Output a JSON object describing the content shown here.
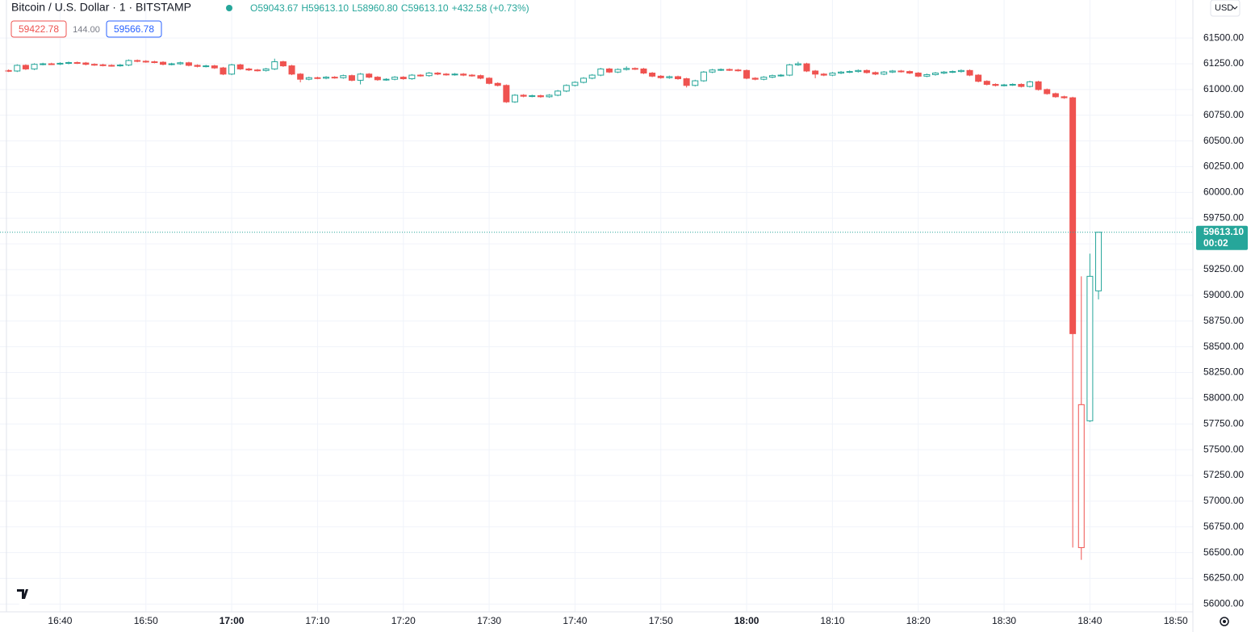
{
  "chart_data": {
    "type": "candlestick",
    "symbol": "Bitcoin / U.S. Dollar · 1 · BITSTAMP",
    "ohlc": [
      "O59043.67",
      "H59613.10",
      "L58960.80",
      "C59613.10",
      "+432.58 (+0.73%)"
    ],
    "bid": "59422.78",
    "spread": "144.00",
    "ask": "59566.78",
    "currency": "USD",
    "last_price": "59613.10",
    "countdown": "00:02",
    "up_color": "#26a69a",
    "down_color": "#ef5350",
    "grid": true,
    "x": [
      "16:34",
      "16:35",
      "16:36",
      "16:37",
      "16:38",
      "16:39",
      "16:40",
      "16:41",
      "16:42",
      "16:43",
      "16:44",
      "16:45",
      "16:46",
      "16:47",
      "16:48",
      "16:49",
      "16:50",
      "16:51",
      "16:52",
      "16:53",
      "16:54",
      "16:55",
      "16:56",
      "16:57",
      "16:58",
      "16:59",
      "17:00",
      "17:01",
      "17:02",
      "17:03",
      "17:04",
      "17:05",
      "17:06",
      "17:07",
      "17:08",
      "17:09",
      "17:10",
      "17:11",
      "17:12",
      "17:13",
      "17:14",
      "17:15",
      "17:16",
      "17:17",
      "17:18",
      "17:19",
      "17:20",
      "17:21",
      "17:22",
      "17:23",
      "17:24",
      "17:25",
      "17:26",
      "17:27",
      "17:28",
      "17:29",
      "17:30",
      "17:31",
      "17:32",
      "17:33",
      "17:34",
      "17:35",
      "17:36",
      "17:37",
      "17:38",
      "17:39",
      "17:40",
      "17:41",
      "17:42",
      "17:43",
      "17:44",
      "17:45",
      "17:46",
      "17:47",
      "17:48",
      "17:49",
      "17:50",
      "17:51",
      "17:52",
      "17:53",
      "17:54",
      "17:55",
      "17:56",
      "17:57",
      "17:58",
      "17:59",
      "18:00",
      "18:01",
      "18:02",
      "18:03",
      "18:04",
      "18:05",
      "18:06",
      "18:07",
      "18:08",
      "18:09",
      "18:10",
      "18:11",
      "18:12",
      "18:13",
      "18:14",
      "18:15",
      "18:16",
      "18:17",
      "18:18",
      "18:19",
      "18:20",
      "18:21",
      "18:22",
      "18:23",
      "18:24",
      "18:25",
      "18:26",
      "18:27",
      "18:28",
      "18:29",
      "18:30",
      "18:31",
      "18:32",
      "18:33",
      "18:34",
      "18:35",
      "18:36",
      "18:37",
      "18:38",
      "18:39",
      "18:40",
      "18:41"
    ],
    "open": [
      61185,
      61180,
      61235,
      61200,
      61245,
      61250,
      61248,
      61255,
      61262,
      61258,
      61245,
      61240,
      61235,
      61232,
      61238,
      61282,
      61275,
      61270,
      61265,
      61245,
      61250,
      61260,
      61235,
      61225,
      61230,
      61210,
      61150,
      61240,
      61200,
      61190,
      61185,
      61200,
      61270,
      61230,
      61150,
      61100,
      61115,
      61110,
      61120,
      61115,
      61135,
      61090,
      61150,
      61120,
      61095,
      61100,
      61120,
      61105,
      61140,
      61135,
      61160,
      61150,
      61145,
      61150,
      61140,
      61135,
      61110,
      61060,
      61040,
      60880,
      60945,
      60935,
      60940,
      60930,
      60945,
      60985,
      61040,
      61070,
      61110,
      61140,
      61200,
      61170,
      61195,
      61205,
      61200,
      61160,
      61130,
      61115,
      61125,
      61105,
      61040,
      61085,
      61170,
      61190,
      61195,
      61190,
      61185,
      61110,
      61100,
      61120,
      61135,
      61140,
      61240,
      61250,
      61180,
      61150,
      61140,
      61160,
      61170,
      61175,
      61185,
      61165,
      61150,
      61170,
      61180,
      61175,
      61160,
      61130,
      61145,
      61160,
      61170,
      61175,
      61185,
      61140,
      61080,
      61050,
      61040,
      61045,
      61050,
      61030,
      61075,
      61000,
      60960,
      60930,
      60920,
      56549,
      57781,
      59043.67
    ],
    "high": [
      61195,
      61245,
      61245,
      61255,
      61260,
      61260,
      61265,
      61272,
      61272,
      61268,
      61255,
      61250,
      61245,
      61248,
      61292,
      61292,
      61285,
      61280,
      61275,
      61260,
      61270,
      61270,
      61245,
      61240,
      61240,
      61220,
      61250,
      61250,
      61210,
      61200,
      61210,
      61300,
      61280,
      61240,
      61160,
      61125,
      61125,
      61130,
      61130,
      61145,
      61145,
      61160,
      61160,
      61130,
      61110,
      61130,
      61130,
      61150,
      61150,
      61170,
      61170,
      61160,
      61160,
      61160,
      61150,
      61145,
      61120,
      61070,
      61050,
      60955,
      60955,
      60950,
      60950,
      60955,
      60995,
      61050,
      61080,
      61120,
      61150,
      61210,
      61210,
      61205,
      61225,
      61215,
      61210,
      61170,
      61140,
      61135,
      61135,
      61115,
      61095,
      61180,
      61200,
      61205,
      61205,
      61200,
      61195,
      61120,
      61130,
      61145,
      61150,
      61250,
      61270,
      61260,
      61190,
      61160,
      61170,
      61180,
      61185,
      61195,
      61195,
      61175,
      61180,
      61190,
      61190,
      61185,
      61170,
      61155,
      61170,
      61180,
      61185,
      61195,
      61195,
      61150,
      61090,
      61060,
      61055,
      61060,
      61060,
      61085,
      61085,
      61010,
      60970,
      60940,
      60930,
      59185,
      59405,
      59613.1
    ],
    "low": [
      61170,
      61170,
      61190,
      61190,
      61235,
      61238,
      61238,
      61245,
      61248,
      61235,
      61230,
      61225,
      61222,
      61222,
      61228,
      61265,
      61260,
      61255,
      61235,
      61235,
      61240,
      61225,
      61215,
      61215,
      61200,
      61140,
      61140,
      61190,
      61180,
      61175,
      61175,
      61190,
      61220,
      61140,
      61070,
      61090,
      61100,
      61100,
      61105,
      61105,
      61080,
      61050,
      61110,
      61085,
      61085,
      61090,
      61095,
      61095,
      61125,
      61125,
      61140,
      61135,
      61135,
      61130,
      61125,
      61100,
      61050,
      61030,
      60870,
      60870,
      60925,
      60925,
      60920,
      60920,
      60935,
      60975,
      61030,
      61060,
      61100,
      61130,
      61160,
      61160,
      61185,
      61190,
      61150,
      61120,
      61105,
      61105,
      61095,
      61020,
      61030,
      61075,
      61160,
      61180,
      61180,
      61175,
      61100,
      61090,
      61090,
      61110,
      61125,
      61130,
      61230,
      61170,
      61110,
      61130,
      61130,
      61150,
      61160,
      61165,
      61155,
      61140,
      61140,
      61160,
      61165,
      61150,
      61120,
      61120,
      61135,
      61150,
      61160,
      61165,
      61130,
      61070,
      61040,
      61030,
      61030,
      61035,
      61020,
      61020,
      60990,
      60950,
      60920,
      60910,
      56549,
      56430,
      57770,
      58960.8
    ],
    "close": [
      61180,
      61235,
      61200,
      61245,
      61250,
      61248,
      61255,
      61262,
      61258,
      61245,
      61240,
      61235,
      61232,
      61238,
      61282,
      61275,
      61270,
      61265,
      61245,
      61250,
      61260,
      61235,
      61225,
      61230,
      61210,
      61150,
      61240,
      61200,
      61190,
      61185,
      61200,
      61270,
      61230,
      61150,
      61100,
      61115,
      61110,
      61120,
      61115,
      61135,
      61090,
      61150,
      61120,
      61095,
      61100,
      61120,
      61105,
      61140,
      61135,
      61160,
      61150,
      61145,
      61150,
      61140,
      61135,
      61110,
      61060,
      61040,
      60880,
      60945,
      60935,
      60940,
      60930,
      60945,
      60985,
      61040,
      61070,
      61110,
      61140,
      61200,
      61170,
      61195,
      61205,
      61200,
      61160,
      61130,
      61115,
      61125,
      61105,
      61040,
      61085,
      61170,
      61190,
      61195,
      61190,
      61185,
      61110,
      61100,
      61120,
      61135,
      61140,
      61240,
      61250,
      61180,
      61150,
      61140,
      61160,
      61170,
      61175,
      61185,
      61165,
      61150,
      61170,
      61180,
      61175,
      61160,
      61130,
      61145,
      61160,
      61170,
      61175,
      61185,
      61140,
      61080,
      61050,
      61040,
      61045,
      61050,
      61030,
      61075,
      61000,
      60960,
      60930,
      60920,
      58628,
      57938,
      59185,
      59613.1
    ],
    "xlim": [
      "16:33",
      "18:52"
    ],
    "xticks": [
      "16:40",
      "16:50",
      "17:00",
      "17:10",
      "17:20",
      "17:30",
      "17:40",
      "17:50",
      "18:00",
      "18:10",
      "18:20",
      "18:30",
      "18:40",
      "18:50"
    ],
    "ylim": [
      55870,
      61870
    ],
    "yticks": [
      {
        "value": 56000,
        "label": "56000.00"
      },
      {
        "value": 56250,
        "label": "56250.00"
      },
      {
        "value": 56500,
        "label": "56500.00"
      },
      {
        "value": 56750,
        "label": "56750.00"
      },
      {
        "value": 57000,
        "label": "57000.00"
      },
      {
        "value": 57250,
        "label": "57250.00"
      },
      {
        "value": 57500,
        "label": "57500.00"
      },
      {
        "value": 57750,
        "label": "57750.00"
      },
      {
        "value": 58000,
        "label": "58000.00"
      },
      {
        "value": 58250,
        "label": "58250.00"
      },
      {
        "value": 58500,
        "label": "58500.00"
      },
      {
        "value": 58750,
        "label": "58750.00"
      },
      {
        "value": 59000,
        "label": "59000.00"
      },
      {
        "value": 59250,
        "label": "59250.00"
      },
      {
        "value": 59500,
        "label": "59500.00"
      },
      {
        "value": 59750,
        "label": "59750.00"
      },
      {
        "value": 60000,
        "label": "60000.00"
      },
      {
        "value": 60250,
        "label": "60250.00"
      },
      {
        "value": 60500,
        "label": "60500.00"
      },
      {
        "value": 60750,
        "label": "60750.00"
      },
      {
        "value": 61000,
        "label": "61000.00"
      },
      {
        "value": 61250,
        "label": "61250.00"
      },
      {
        "value": 61500,
        "label": "61500.00"
      }
    ]
  }
}
